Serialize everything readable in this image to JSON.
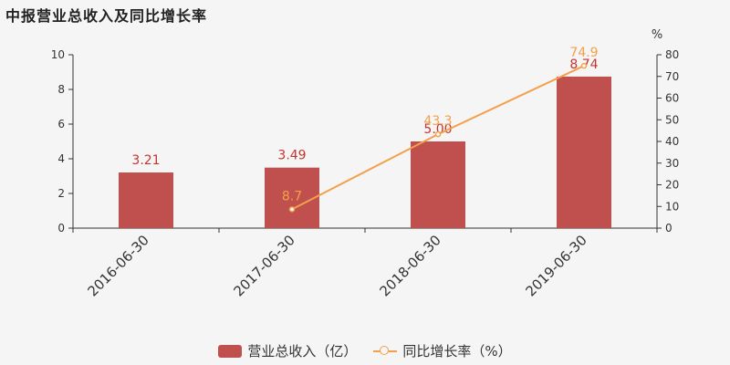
{
  "title": "中报营业总收入及同比增长率",
  "chart_data": {
    "type": "bar+line",
    "categories": [
      "2016-06-30",
      "2017-06-30",
      "2018-06-30",
      "2019-06-30"
    ],
    "series": [
      {
        "name": "营业总收入（亿）",
        "type": "bar",
        "axis": "left",
        "values": [
          3.21,
          3.49,
          5.0,
          8.74
        ],
        "labels": [
          "3.21",
          "3.49",
          "5.00",
          "8.74"
        ],
        "color": "#c0504d"
      },
      {
        "name": "同比增长率（%）",
        "type": "line",
        "axis": "right",
        "values": [
          null,
          8.7,
          43.3,
          74.9
        ],
        "labels": [
          "",
          "8.7",
          "43.3",
          "74.9"
        ],
        "color": "#f4a04a"
      }
    ],
    "y_left": {
      "min": 0,
      "max": 10,
      "ticks": [
        "0",
        "2",
        "4",
        "6",
        "8",
        "10"
      ]
    },
    "y_right": {
      "min": 0,
      "max": 80,
      "unit": "%",
      "ticks": [
        "0",
        "10",
        "20",
        "30",
        "40",
        "50",
        "60",
        "70",
        "80"
      ]
    },
    "legend_position": "bottom-center",
    "grid": false
  },
  "legend": {
    "bar_label": "营业总收入（亿）",
    "line_label": "同比增长率（%）"
  }
}
